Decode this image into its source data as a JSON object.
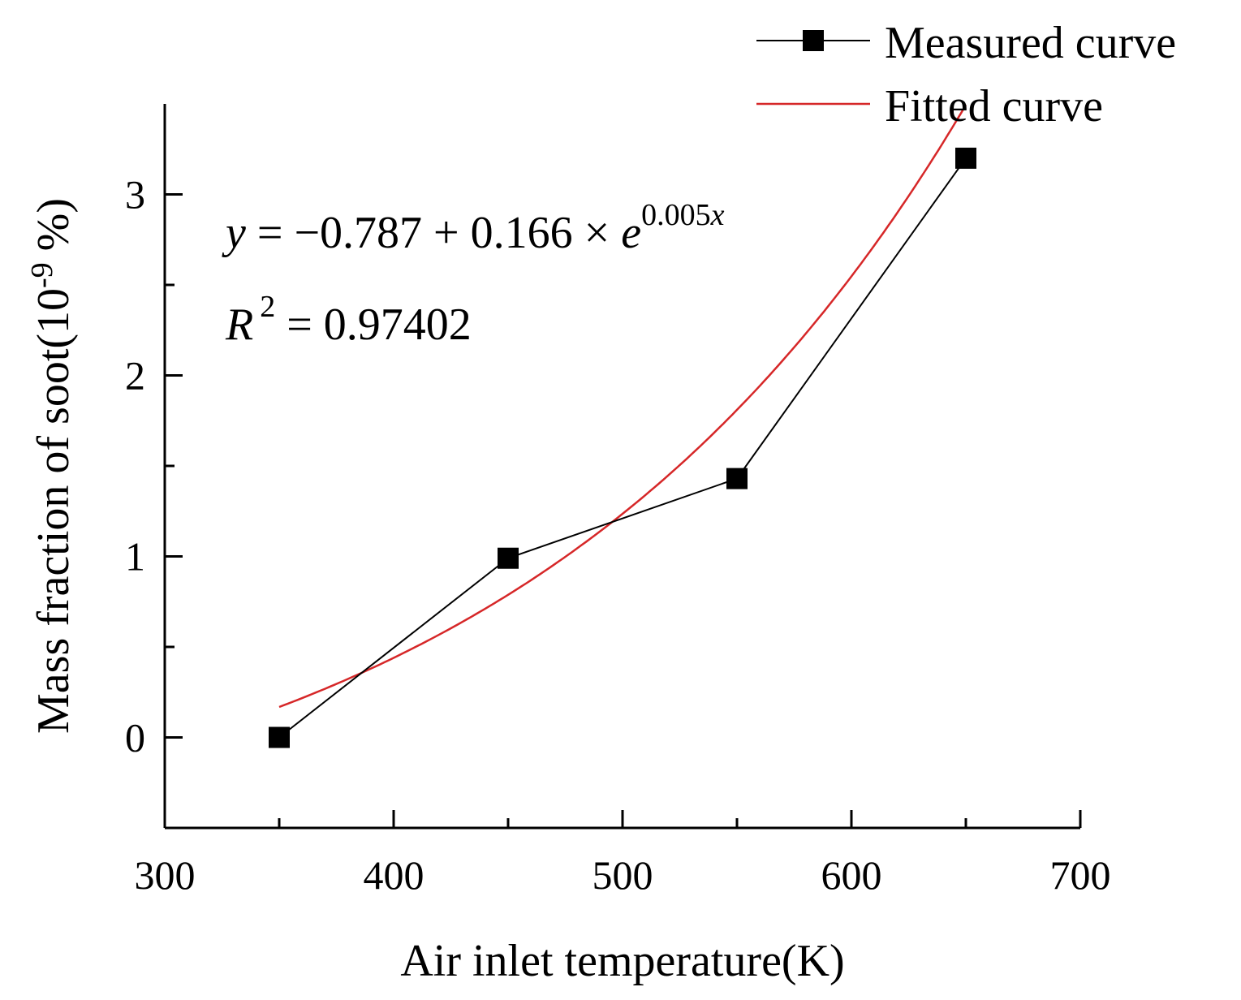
{
  "chart_data": {
    "type": "line",
    "title": "",
    "xlabel": "Air inlet temperature(K)",
    "ylabel": "Mass fraction of soot(10",
    "ylabel_exp": "-9",
    "ylabel_suffix": " %)",
    "xlim": [
      300,
      700
    ],
    "ylim": [
      -0.5,
      3.5
    ],
    "x_ticks": [
      300,
      400,
      500,
      600,
      700
    ],
    "x_tick_labels": [
      "300",
      "400",
      "500",
      "600",
      "700"
    ],
    "y_ticks": [
      0,
      1,
      2,
      3
    ],
    "y_tick_labels": [
      "0",
      "1",
      "2",
      "3"
    ],
    "y_minor_ticks": [
      0.5,
      1.5,
      2.5
    ],
    "grid": false,
    "legend_position": "top-right",
    "series": [
      {
        "name": "Measured curve",
        "kind": "line+markers",
        "color": "#000000",
        "x": [
          350,
          450,
          550,
          650
        ],
        "values": [
          0.0,
          0.99,
          1.43,
          3.2
        ]
      },
      {
        "name": "Fitted curve",
        "kind": "function",
        "color": "#d62728",
        "x_range": [
          350,
          650
        ],
        "params": {
          "a": -0.787,
          "b": 0.166,
          "c": 0.005
        }
      }
    ],
    "annotations": {
      "equation": {
        "y": "y",
        "equals": " = ",
        "rhs": "−0.787 + 0.166 × ",
        "e": "e",
        "exponent": "0.005",
        "exponent_var": "x"
      },
      "r_squared": {
        "r": "R",
        "power": "2",
        "rhs": " = 0.97402"
      }
    }
  }
}
